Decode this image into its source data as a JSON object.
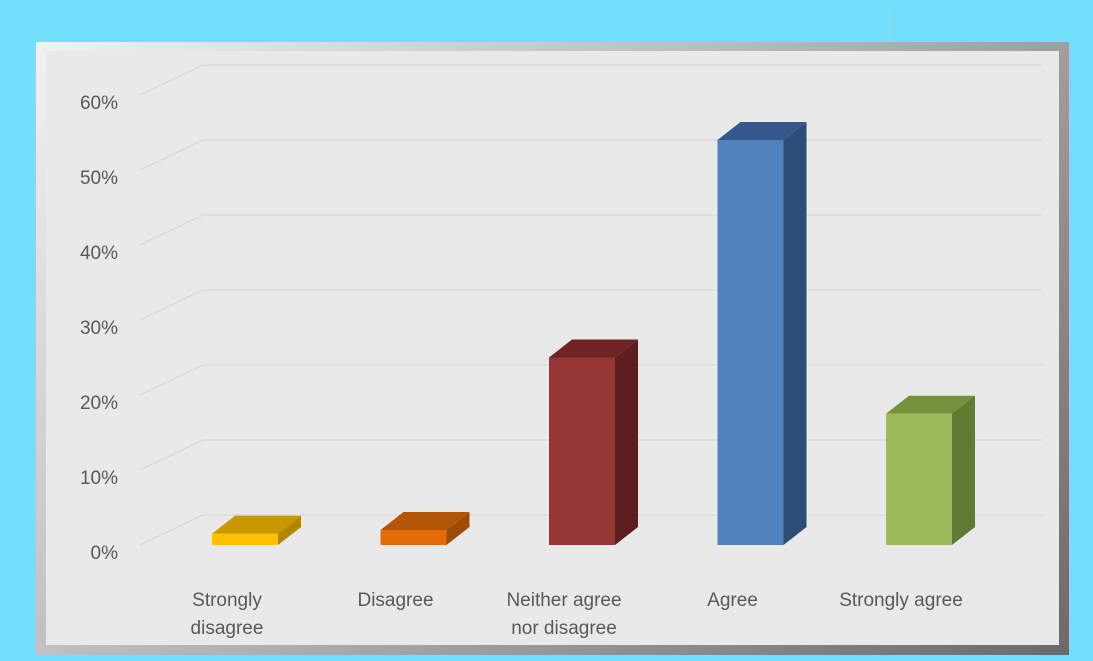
{
  "chart_data": {
    "type": "bar",
    "title": "",
    "xlabel": "",
    "ylabel": "",
    "categories": [
      [
        "Strongly",
        "disagree"
      ],
      [
        "Disagree"
      ],
      [
        "Neither agree",
        "nor disagree"
      ],
      [
        "Agree"
      ],
      [
        "Strongly agree"
      ]
    ],
    "values": [
      0.015,
      0.02,
      0.25,
      0.54,
      0.175
    ],
    "ylim": [
      0,
      0.6
    ],
    "yticks": [
      "0%",
      "10%",
      "20%",
      "30%",
      "40%",
      "50%",
      "60%"
    ],
    "colors": [
      {
        "front": "#ffc000",
        "side": "#b38600",
        "top": "#c99700"
      },
      {
        "front": "#e36c09",
        "side": "#9e4b06",
        "top": "#b35507"
      },
      {
        "front": "#943634",
        "side": "#5e1e1e",
        "top": "#6e2424"
      },
      {
        "front": "#4f81bd",
        "side": "#2c4d76",
        "top": "#35598a"
      },
      {
        "front": "#9bbb59",
        "side": "#5f7a33",
        "top": "#76923c"
      }
    ],
    "grid": true,
    "legend": "none",
    "style": "3d-column"
  }
}
